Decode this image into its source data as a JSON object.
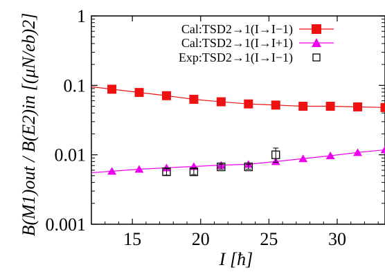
{
  "chart_data": {
    "type": "scatter",
    "title": "",
    "xlabel": "I [ħ]",
    "ylabel": "B(M1)out / B(E2)in [(μN/eb)2]",
    "xlim": [
      12,
      33.5
    ],
    "ylim": [
      0.001,
      1
    ],
    "yscale": "log",
    "xticks": [
      15,
      20,
      25,
      30
    ],
    "yticks": [
      1,
      0.1,
      0.01,
      0.001
    ],
    "ytick_labels": [
      "1",
      "0.1",
      "0.01",
      "0.001"
    ],
    "legend_position": "top-right",
    "grid": false,
    "series": [
      {
        "name": "Cal:TSD2→1(I→I−1)",
        "marker": "square-filled",
        "color": "#ee1111",
        "x": [
          13.5,
          15.5,
          17.5,
          19.5,
          21.5,
          23.5,
          25.5,
          27.5,
          29.5,
          31.5,
          33.5
        ],
        "y": [
          0.088,
          0.079,
          0.071,
          0.063,
          0.058,
          0.054,
          0.052,
          0.05,
          0.05,
          0.049,
          0.048
        ]
      },
      {
        "name": "Cal:TSD2→1(I→I+1)",
        "marker": "triangle-filled",
        "color": "#ee00ee",
        "x": [
          13.5,
          15.5,
          17.5,
          19.5,
          21.5,
          23.5,
          25.5,
          27.5,
          29.5,
          31.5,
          33.5
        ],
        "y": [
          0.0058,
          0.0062,
          0.0065,
          0.0068,
          0.0071,
          0.0073,
          0.008,
          0.0088,
          0.0097,
          0.0108,
          0.0118
        ]
      },
      {
        "name": "Exp:TSD2→1(I→I−1)",
        "marker": "square-open",
        "color": "#000000",
        "x": [
          17.5,
          19.5,
          21.5,
          23.5,
          25.5
        ],
        "y": [
          0.0057,
          0.0057,
          0.0067,
          0.0067,
          0.01
        ],
        "err_low": [
          0.0051,
          0.0052,
          0.0062,
          0.0062,
          0.0078
        ],
        "err_high": [
          0.0063,
          0.0063,
          0.0073,
          0.0073,
          0.0125
        ]
      }
    ]
  }
}
